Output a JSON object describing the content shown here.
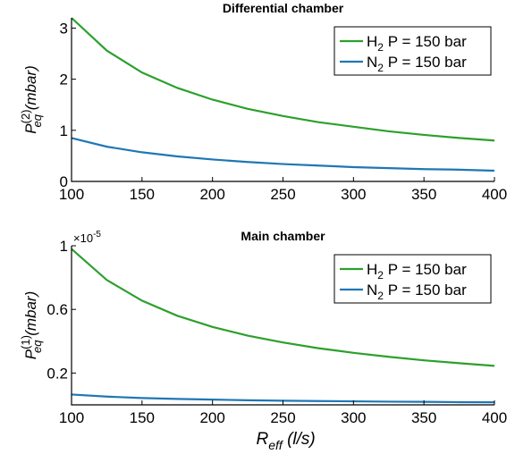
{
  "chart_data": [
    {
      "type": "line",
      "title": "Differential chamber",
      "ylabel": {
        "main": "P",
        "sup": "(2)",
        "sub": "eq",
        "unit": "(mbar)"
      },
      "xlim": [
        100,
        400
      ],
      "ylim": [
        0,
        3.2
      ],
      "xticks": [
        100,
        150,
        200,
        250,
        300,
        350,
        400
      ],
      "yticks": [
        0,
        1,
        2,
        3
      ],
      "ytick_labels": [
        "0",
        "1",
        "2",
        "3"
      ],
      "legend_position": "top-right",
      "series": [
        {
          "name": "H2 P = 150 bar",
          "label_main": "H",
          "label_sub": "2",
          "label_rest": " P = 150 bar",
          "color": "#2ca02c",
          "x": [
            100,
            125,
            150,
            175,
            200,
            225,
            250,
            275,
            300,
            325,
            350,
            375,
            400
          ],
          "y": [
            3.2,
            2.56,
            2.13,
            1.83,
            1.6,
            1.42,
            1.28,
            1.16,
            1.07,
            0.98,
            0.91,
            0.85,
            0.8
          ]
        },
        {
          "name": "N2 P = 150 bar",
          "label_main": "N",
          "label_sub": "2",
          "label_rest": " P = 150 bar",
          "color": "#1f77b4",
          "x": [
            100,
            125,
            150,
            175,
            200,
            225,
            250,
            275,
            300,
            325,
            350,
            375,
            400
          ],
          "y": [
            0.85,
            0.68,
            0.57,
            0.49,
            0.43,
            0.38,
            0.34,
            0.31,
            0.28,
            0.26,
            0.24,
            0.23,
            0.21
          ]
        }
      ]
    },
    {
      "type": "line",
      "title": "Main chamber",
      "ylabel": {
        "main": "P",
        "sup": "(1)",
        "sub": "eq",
        "unit": "(mbar)"
      },
      "xlabel": {
        "main": "R",
        "sub": "eff",
        "unit": "(l/s)"
      },
      "y_multiplier": {
        "base": "×10",
        "exp": "-5"
      },
      "xlim": [
        100,
        400
      ],
      "ylim": [
        0,
        1
      ],
      "xticks": [
        100,
        150,
        200,
        250,
        300,
        350,
        400
      ],
      "yticks": [
        0.2,
        0.6,
        1
      ],
      "ytick_labels": [
        "0.2",
        "0.6",
        "1"
      ],
      "legend_position": "top-right",
      "series": [
        {
          "name": "H2 P = 150 bar",
          "label_main": "H",
          "label_sub": "2",
          "label_rest": " P = 150 bar",
          "color": "#2ca02c",
          "x": [
            100,
            125,
            150,
            175,
            200,
            225,
            250,
            275,
            300,
            325,
            350,
            375,
            400
          ],
          "y": [
            0.98,
            0.785,
            0.655,
            0.56,
            0.49,
            0.435,
            0.392,
            0.356,
            0.327,
            0.302,
            0.28,
            0.262,
            0.245
          ]
        },
        {
          "name": "N2 P = 150 bar",
          "label_main": "N",
          "label_sub": "2",
          "label_rest": " P = 150 bar",
          "color": "#1f77b4",
          "x": [
            100,
            125,
            150,
            175,
            200,
            225,
            250,
            275,
            300,
            325,
            350,
            375,
            400
          ],
          "y": [
            0.065,
            0.052,
            0.043,
            0.037,
            0.033,
            0.029,
            0.026,
            0.024,
            0.022,
            0.02,
            0.019,
            0.017,
            0.016
          ]
        }
      ]
    }
  ]
}
